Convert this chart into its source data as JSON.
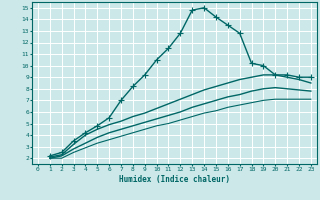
{
  "xlabel": "Humidex (Indice chaleur)",
  "ylabel": "",
  "bg_color": "#cce8e8",
  "grid_color": "#b0d0d0",
  "line_color": "#006666",
  "xlim": [
    -0.5,
    23.5
  ],
  "ylim": [
    1.5,
    15.5
  ],
  "xticks": [
    0,
    1,
    2,
    3,
    4,
    5,
    6,
    7,
    8,
    9,
    10,
    11,
    12,
    13,
    14,
    15,
    16,
    17,
    18,
    19,
    20,
    21,
    22,
    23
  ],
  "yticks": [
    2,
    3,
    4,
    5,
    6,
    7,
    8,
    9,
    10,
    11,
    12,
    13,
    14,
    15
  ],
  "series": [
    {
      "x": [
        1,
        2,
        3,
        4,
        5,
        6,
        7,
        8,
        9,
        10,
        11,
        12,
        13,
        14,
        15,
        16,
        17,
        18,
        19,
        20,
        21,
        22,
        23
      ],
      "y": [
        2.2,
        2.5,
        3.5,
        4.2,
        4.8,
        5.5,
        7.0,
        8.2,
        9.2,
        10.5,
        11.5,
        12.8,
        14.8,
        15.0,
        14.2,
        13.5,
        12.8,
        10.2,
        10.0,
        9.2,
        9.2,
        9.0,
        9.0
      ],
      "marker": "+",
      "linestyle": "-",
      "linewidth": 1.0,
      "markersize": 4
    },
    {
      "x": [
        1,
        2,
        3,
        4,
        5,
        6,
        7,
        8,
        9,
        10,
        11,
        12,
        13,
        14,
        15,
        16,
        17,
        18,
        19,
        20,
        21,
        22,
        23
      ],
      "y": [
        2.1,
        2.3,
        3.2,
        4.0,
        4.5,
        4.9,
        5.2,
        5.6,
        5.9,
        6.3,
        6.7,
        7.1,
        7.5,
        7.9,
        8.2,
        8.5,
        8.8,
        9.0,
        9.2,
        9.2,
        9.0,
        8.8,
        8.5
      ],
      "marker": null,
      "linestyle": "-",
      "linewidth": 1.0,
      "markersize": 0
    },
    {
      "x": [
        1,
        2,
        3,
        4,
        5,
        6,
        7,
        8,
        9,
        10,
        11,
        12,
        13,
        14,
        15,
        16,
        17,
        18,
        19,
        20,
        21,
        22,
        23
      ],
      "y": [
        2.0,
        2.2,
        2.8,
        3.3,
        3.8,
        4.2,
        4.5,
        4.8,
        5.1,
        5.4,
        5.7,
        6.0,
        6.4,
        6.7,
        7.0,
        7.3,
        7.5,
        7.8,
        8.0,
        8.1,
        8.0,
        7.9,
        7.8
      ],
      "marker": null,
      "linestyle": "-",
      "linewidth": 1.0,
      "markersize": 0
    },
    {
      "x": [
        1,
        2,
        3,
        4,
        5,
        6,
        7,
        8,
        9,
        10,
        11,
        12,
        13,
        14,
        15,
        16,
        17,
        18,
        19,
        20,
        21,
        22,
        23
      ],
      "y": [
        2.0,
        2.0,
        2.5,
        2.9,
        3.3,
        3.6,
        3.9,
        4.2,
        4.5,
        4.8,
        5.0,
        5.3,
        5.6,
        5.9,
        6.1,
        6.4,
        6.6,
        6.8,
        7.0,
        7.1,
        7.1,
        7.1,
        7.1
      ],
      "marker": null,
      "linestyle": "-",
      "linewidth": 0.8,
      "markersize": 0
    }
  ]
}
